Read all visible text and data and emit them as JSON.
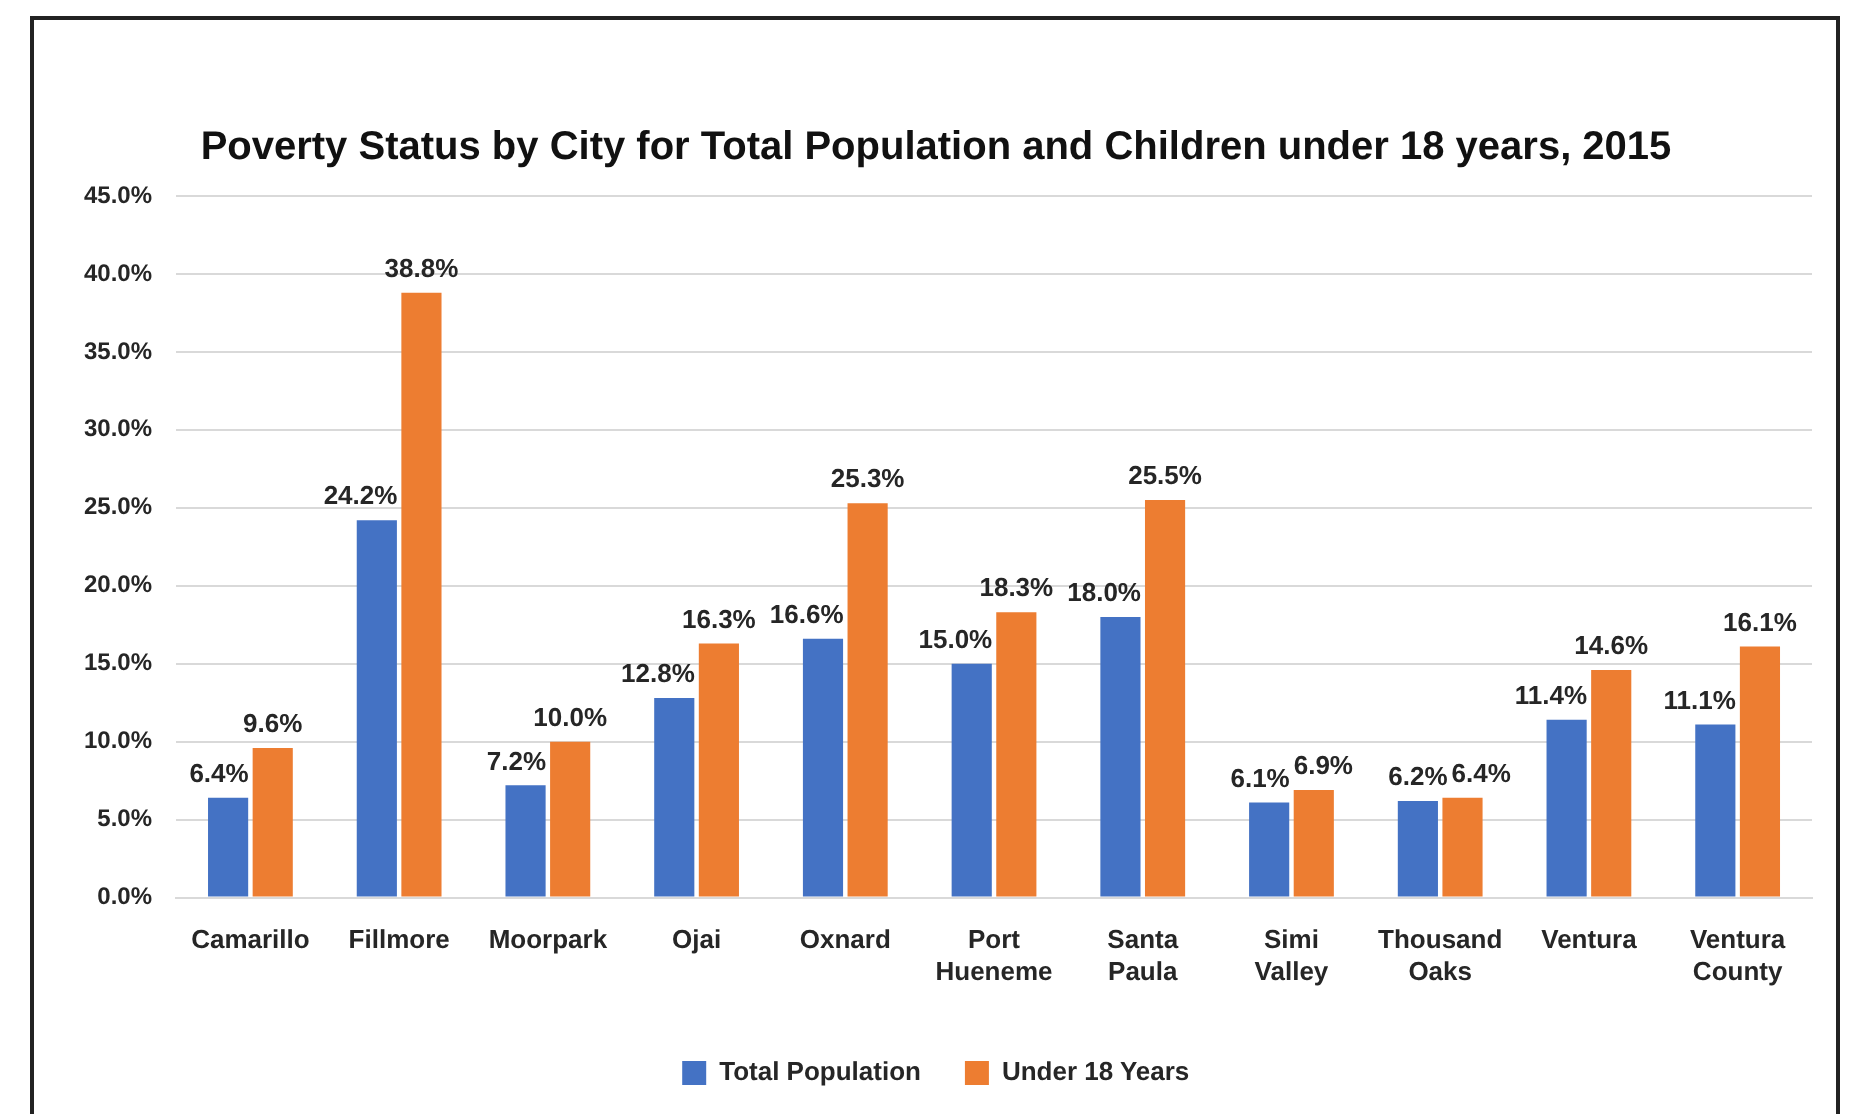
{
  "chart_data": {
    "type": "bar",
    "title": "Poverty Status by City for Total Population and Children under 18 years, 2015",
    "categories": [
      "Camarillo",
      "Fillmore",
      "Moorpark",
      "Ojai",
      "Oxnard",
      "Port Hueneme",
      "Santa Paula",
      "Simi Valley",
      "Thousand Oaks",
      "Ventura",
      "Ventura County"
    ],
    "series": [
      {
        "name": "Total Population",
        "color": "#4472c4",
        "values": [
          6.4,
          24.2,
          7.2,
          12.8,
          16.6,
          15.0,
          18.0,
          6.1,
          6.2,
          11.4,
          11.1
        ],
        "value_labels": [
          "6.4%",
          "24.2%",
          "7.2%",
          "12.8%",
          "16.6%",
          "15.0%",
          "18.0%",
          "6.1%",
          "6.2%",
          "11.4%",
          "11.1%"
        ]
      },
      {
        "name": "Under 18 Years",
        "color": "#ed7d31",
        "values": [
          9.6,
          38.8,
          10.0,
          16.3,
          25.3,
          18.3,
          25.5,
          6.9,
          6.4,
          14.6,
          16.1
        ],
        "value_labels": [
          "9.6%",
          "38.8%",
          "10.0%",
          "16.3%",
          "25.3%",
          "18.3%",
          "25.5%",
          "6.9%",
          "6.4%",
          "14.6%",
          "16.1%"
        ]
      }
    ],
    "ylim": [
      0,
      45
    ],
    "yticks": [
      {
        "value": 0,
        "label": "0.0%"
      },
      {
        "value": 5,
        "label": "5.0%"
      },
      {
        "value": 10,
        "label": "10.0%"
      },
      {
        "value": 15,
        "label": "15.0%"
      },
      {
        "value": 20,
        "label": "20.0%"
      },
      {
        "value": 25,
        "label": "25.0%"
      },
      {
        "value": 30,
        "label": "30.0%"
      },
      {
        "value": 35,
        "label": "35.0%"
      },
      {
        "value": 40,
        "label": "40.0%"
      },
      {
        "value": 45,
        "label": "45.0%"
      }
    ],
    "grid": "y",
    "legend": "bottom"
  }
}
